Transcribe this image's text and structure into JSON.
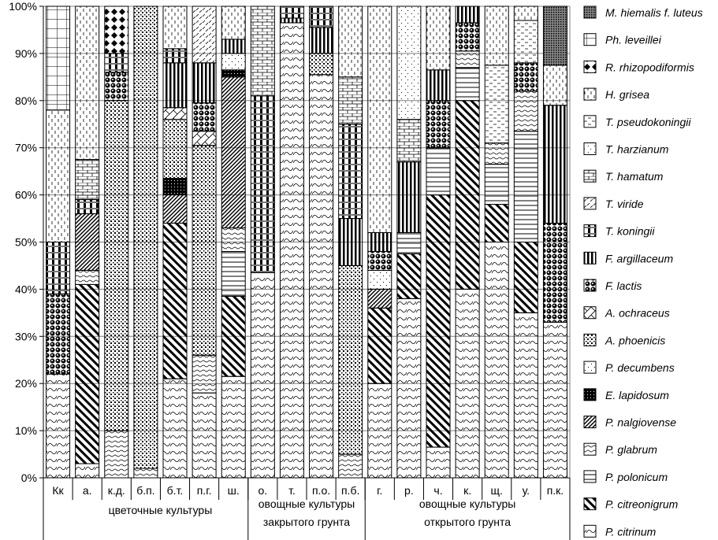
{
  "chart_data": {
    "type": "bar",
    "stacked": true,
    "title": "",
    "xlabel": "",
    "ylabel": "",
    "ylim": [
      0,
      100
    ],
    "yticks": [
      "0%",
      "10%",
      "20%",
      "30%",
      "40%",
      "50%",
      "60%",
      "70%",
      "80%",
      "90%",
      "100%"
    ],
    "grid": true,
    "legend_position": "right",
    "categories": [
      "Кк",
      "а.",
      "к.д.",
      "б.п.",
      "б.т.",
      "п.г.",
      "ш.",
      "о.",
      "т.",
      "п.о.",
      "п.б.",
      "г.",
      "р.",
      "ч.",
      "к.",
      "щ.",
      "у.",
      "п.к."
    ],
    "groups": [
      {
        "label_lines": [
          "цветочные культуры"
        ],
        "categories": [
          "а.",
          "к.д.",
          "б.п.",
          "б.т.",
          "п.г.",
          "ш."
        ]
      },
      {
        "label_lines": [
          "овощные культуры",
          "закрытого грунта"
        ],
        "categories": [
          "о.",
          "т.",
          "п.о.",
          "п.б."
        ]
      },
      {
        "label_lines": [
          "овощные культуры",
          "открытого грунта"
        ],
        "categories": [
          "г.",
          "р.",
          "ч.",
          "к.",
          "щ.",
          "у.",
          "п.к."
        ]
      }
    ],
    "series": [
      {
        "name": "P. citrinum",
        "values": [
          22,
          3,
          0,
          0,
          21,
          18,
          21.5,
          43.5,
          96.5,
          85.5,
          0,
          20,
          38,
          6.5,
          40,
          50,
          35,
          33
        ]
      },
      {
        "name": "P. citreonigrum",
        "values": [
          0,
          38,
          0,
          0,
          33,
          0,
          17,
          0,
          0,
          0,
          0,
          16,
          9.5,
          53.5,
          40,
          8,
          15,
          0
        ]
      },
      {
        "name": "P. polonicum",
        "values": [
          0,
          0,
          0,
          0,
          0,
          0,
          9.5,
          0,
          0,
          0,
          0,
          0,
          4.5,
          10,
          7,
          8.5,
          23.5,
          0
        ]
      },
      {
        "name": "P. glabrum",
        "values": [
          0,
          3,
          10,
          2,
          0,
          8,
          5,
          0,
          0,
          0,
          5,
          0,
          0,
          0,
          3.5,
          4.5,
          8.5,
          0
        ]
      },
      {
        "name": "P. nalgiovense",
        "values": [
          0,
          12,
          0,
          0,
          6,
          0,
          32,
          0,
          0,
          0,
          0,
          4,
          0,
          0,
          0,
          0,
          0,
          0
        ]
      },
      {
        "name": "E. lapidosum",
        "values": [
          0,
          0,
          0,
          0,
          3.5,
          0,
          1.5,
          0,
          0,
          0,
          0,
          0,
          0,
          0,
          0,
          0,
          0,
          0
        ]
      },
      {
        "name": "P. decumbens",
        "values": [
          0,
          0,
          0,
          0,
          0,
          0,
          3.5,
          0,
          0,
          0,
          0,
          4,
          0,
          0,
          0,
          0,
          0,
          0
        ]
      },
      {
        "name": "A. phoenicis",
        "values": [
          0,
          0,
          70,
          98,
          12.5,
          44.5,
          0,
          0,
          0,
          4.5,
          40,
          0,
          0,
          0,
          0,
          0,
          0,
          0
        ]
      },
      {
        "name": "A. ochraceus",
        "values": [
          0,
          0,
          0,
          0,
          2.5,
          3,
          0,
          0,
          0,
          0,
          0,
          0,
          0,
          0,
          0,
          0,
          0,
          0
        ]
      },
      {
        "name": "F. lactis",
        "values": [
          17,
          0,
          6,
          0,
          0,
          6,
          0,
          0,
          0,
          0,
          0,
          4,
          0,
          10,
          6,
          0,
          6,
          21
        ]
      },
      {
        "name": "F. argillaceum",
        "values": [
          0,
          0,
          0,
          0,
          9.5,
          8.5,
          3,
          0,
          1,
          5.5,
          10,
          4,
          15,
          6.5,
          3.5,
          0,
          0,
          25
        ]
      },
      {
        "name": "T. koningii",
        "values": [
          11,
          3,
          4,
          0,
          3,
          0,
          0,
          37.5,
          2.5,
          4.5,
          20,
          0,
          0,
          0,
          0,
          0,
          0,
          0
        ]
      },
      {
        "name": "T. viride",
        "values": [
          0,
          0,
          0,
          0,
          0,
          12,
          0,
          0,
          0,
          0,
          0,
          0,
          0,
          0,
          0,
          0,
          0,
          0
        ]
      },
      {
        "name": "T. hamatum",
        "values": [
          0,
          8.5,
          0,
          0,
          0,
          0,
          0,
          19,
          0,
          0,
          10,
          0,
          9,
          0,
          0,
          0,
          0,
          0
        ]
      },
      {
        "name": "T. harzianum",
        "values": [
          0,
          0,
          0,
          0,
          0,
          0,
          0,
          0,
          0,
          0,
          0,
          0,
          24,
          0,
          0,
          0,
          0,
          0
        ]
      },
      {
        "name": "T. pseudokoningii",
        "values": [
          0,
          0,
          0,
          0,
          0,
          0,
          0,
          0,
          0,
          0,
          0,
          0,
          0,
          0,
          0,
          16.5,
          9,
          0
        ]
      },
      {
        "name": "H. grisea",
        "values": [
          28,
          32.5,
          0,
          0,
          9,
          0,
          7,
          0,
          0,
          0,
          15,
          48,
          0,
          13.5,
          0,
          12.5,
          3,
          8.5
        ]
      },
      {
        "name": "R. rhizopodiformis",
        "values": [
          0,
          0,
          10,
          0,
          0,
          0,
          0,
          0,
          0,
          0,
          0,
          0,
          0,
          0,
          0,
          0,
          0,
          0
        ]
      },
      {
        "name": "Ph. leveillei",
        "values": [
          22,
          0,
          0,
          0,
          0,
          0,
          0,
          0,
          0,
          0,
          0,
          0,
          0,
          0,
          0,
          0,
          0,
          0
        ]
      },
      {
        "name": "M. hiemalis f. luteus",
        "values": [
          0,
          0,
          0,
          0,
          0,
          0,
          0,
          0,
          0,
          0,
          0,
          0,
          0,
          0,
          0,
          0,
          0,
          12.5
        ]
      }
    ]
  }
}
